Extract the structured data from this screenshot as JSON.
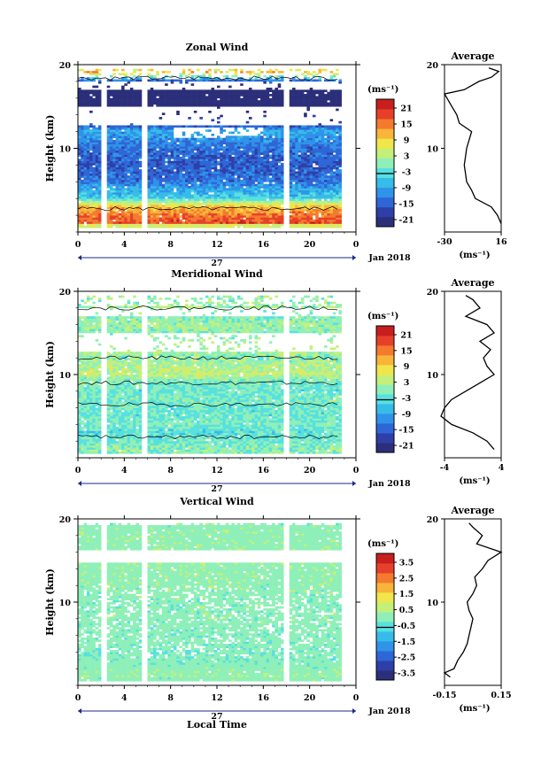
{
  "panels": [
    {
      "title": "Zonal Wind",
      "ylabel": "Height (km)",
      "xticks": [
        "0",
        "4",
        "8",
        "12",
        "16",
        "20",
        "0"
      ],
      "yticks": [
        "20",
        "10"
      ],
      "day_label": "27",
      "month_label": "Jan 2018",
      "cb_unit": "(ms⁻¹)",
      "cb_ticks": [
        "21",
        "15",
        "9",
        "3",
        "-3",
        "-9",
        "-15",
        "-21"
      ],
      "avg_title": "Average",
      "avg_xticks": [
        "-30",
        "16"
      ],
      "avg_unit": "(ms⁻¹)",
      "avg_yticks": [
        "20",
        "10"
      ]
    },
    {
      "title": "Meridional Wind",
      "ylabel": "Height (km)",
      "xticks": [
        "0",
        "4",
        "8",
        "12",
        "16",
        "20",
        "0"
      ],
      "yticks": [
        "20",
        "10"
      ],
      "day_label": "27",
      "month_label": "Jan 2018",
      "cb_unit": "(ms⁻¹)",
      "cb_ticks": [
        "21",
        "15",
        "9",
        "3",
        "-3",
        "-9",
        "-15",
        "-21"
      ],
      "avg_title": "Average",
      "avg_xticks": [
        "-4",
        "4"
      ],
      "avg_unit": "(ms⁻¹)",
      "avg_yticks": [
        "20",
        "10"
      ]
    },
    {
      "title": "Vertical Wind",
      "ylabel": "Height (km)",
      "xticks": [
        "0",
        "4",
        "8",
        "12",
        "16",
        "20",
        "0"
      ],
      "yticks": [
        "20",
        "10"
      ],
      "day_label": "27",
      "month_label": "Jan 2018",
      "cb_unit": "(ms⁻¹)",
      "cb_ticks": [
        "3.5",
        "2.5",
        "1.5",
        "0.5",
        "-0.5",
        "-1.5",
        "-2.5",
        "-3.5"
      ],
      "avg_title": "Average",
      "avg_xticks": [
        "-0.15",
        "0.15"
      ],
      "avg_unit": "(ms⁻¹)",
      "avg_yticks": [
        "20",
        "10"
      ]
    }
  ],
  "xlabel": "Local Time",
  "colors": {
    "colormap": [
      "#2b2f7a",
      "#2e3fa8",
      "#2f66d6",
      "#2f93ea",
      "#36bce8",
      "#57e0e0",
      "#8ef0b8",
      "#c4f07a",
      "#f0e64a",
      "#f9b43a",
      "#f47a2e",
      "#e7402a",
      "#c81e1e"
    ]
  },
  "chart_data": [
    {
      "type": "heatmap",
      "title": "Zonal Wind",
      "ylabel": "Height (km)",
      "xlabel": "Local Time",
      "xlim": [
        0,
        24
      ],
      "ylim": [
        0,
        20
      ],
      "clim": [
        -21,
        21
      ],
      "data_gaps_hours": [
        [
          2.0,
          2.5
        ],
        [
          5.3,
          5.9
        ],
        [
          17.6,
          18.1
        ]
      ],
      "height_profile_ms": [
        [
          1,
          16
        ],
        [
          2,
          13
        ],
        [
          3,
          8
        ],
        [
          4,
          -5
        ],
        [
          5,
          -8
        ],
        [
          6,
          -12
        ],
        [
          7,
          -13
        ],
        [
          8,
          -14
        ],
        [
          9,
          -13
        ],
        [
          10,
          -12
        ],
        [
          11,
          -10
        ],
        [
          12,
          -8
        ],
        [
          13,
          -18
        ],
        [
          14,
          -20
        ],
        [
          15,
          -24
        ],
        [
          16,
          -28
        ],
        [
          17,
          -30
        ],
        [
          18,
          -12
        ],
        [
          19,
          10
        ],
        [
          19.5,
          5
        ]
      ],
      "contour_levels": [
        3
      ],
      "profile": {
        "title": "Average",
        "xlim": [
          -30,
          16
        ],
        "points": [
          [
            16,
            1
          ],
          [
            13,
            2
          ],
          [
            8,
            3
          ],
          [
            -5,
            4
          ],
          [
            -8,
            5
          ],
          [
            -12,
            6
          ],
          [
            -13,
            7
          ],
          [
            -14,
            8
          ],
          [
            -13,
            9
          ],
          [
            -12,
            10
          ],
          [
            -10,
            11
          ],
          [
            -8,
            12
          ],
          [
            -18,
            13
          ],
          [
            -20,
            14
          ],
          [
            -24,
            15
          ],
          [
            -28,
            16
          ],
          [
            -30,
            16.5
          ],
          [
            -14,
            17
          ],
          [
            -2,
            18
          ],
          [
            8,
            18.5
          ],
          [
            14,
            19.2
          ],
          [
            6,
            19.6
          ]
        ]
      }
    },
    {
      "type": "heatmap",
      "title": "Meridional Wind",
      "ylabel": "Height (km)",
      "xlabel": "Local Time",
      "xlim": [
        0,
        24
      ],
      "ylim": [
        0,
        20
      ],
      "clim": [
        -21,
        21
      ],
      "data_gaps_hours": [
        [
          2.0,
          2.5
        ],
        [
          5.3,
          5.9
        ],
        [
          17.6,
          18.1
        ]
      ],
      "height_profile_ms": [
        [
          1,
          0
        ],
        [
          2,
          -2
        ],
        [
          3,
          -3
        ],
        [
          4,
          -1
        ],
        [
          5,
          -2
        ],
        [
          6,
          -2
        ],
        [
          7,
          -1
        ],
        [
          8,
          -2
        ],
        [
          9,
          -1
        ],
        [
          10,
          3
        ],
        [
          11,
          2
        ],
        [
          12,
          0
        ],
        [
          13,
          2
        ],
        [
          14,
          1
        ],
        [
          15,
          0
        ],
        [
          16,
          1
        ],
        [
          17,
          -1
        ],
        [
          18,
          1
        ],
        [
          19,
          0
        ]
      ],
      "contour_levels": [
        3,
        -3
      ],
      "profile": {
        "title": "Average",
        "xlim": [
          -4,
          4
        ],
        "points": [
          [
            3,
            1
          ],
          [
            2,
            2
          ],
          [
            0,
            3
          ],
          [
            -3,
            4
          ],
          [
            -4.5,
            5
          ],
          [
            -4,
            6
          ],
          [
            -3,
            7
          ],
          [
            -1,
            8
          ],
          [
            1,
            9
          ],
          [
            3,
            10
          ],
          [
            2,
            11
          ],
          [
            1.5,
            12
          ],
          [
            2.5,
            13
          ],
          [
            1,
            14
          ],
          [
            3,
            15
          ],
          [
            2,
            16
          ],
          [
            -1,
            17
          ],
          [
            1,
            18
          ],
          [
            0,
            19
          ],
          [
            -1,
            19.5
          ]
        ]
      }
    },
    {
      "type": "heatmap",
      "title": "Vertical Wind",
      "ylabel": "Height (km)",
      "xlabel": "Local Time",
      "xlim": [
        0,
        24
      ],
      "ylim": [
        0,
        20
      ],
      "clim": [
        -3.5,
        3.5
      ],
      "data_gaps_hours": [
        [
          2.0,
          2.5
        ],
        [
          5.3,
          5.9
        ],
        [
          17.6,
          18.1
        ]
      ],
      "height_profile_ms": [
        [
          1,
          0.1
        ],
        [
          2,
          0
        ],
        [
          3,
          -0.1
        ],
        [
          4,
          -0.1
        ],
        [
          5,
          -0.05
        ],
        [
          6,
          -0.05
        ],
        [
          8,
          0
        ],
        [
          10,
          -0.03
        ],
        [
          12,
          0.02
        ],
        [
          14,
          0.05
        ],
        [
          16,
          0.1
        ],
        [
          17,
          0.02
        ],
        [
          18,
          0.05
        ],
        [
          19,
          0
        ]
      ],
      "contour_levels": [],
      "profile": {
        "title": "Average",
        "xlim": [
          -0.15,
          0.15
        ],
        "points": [
          [
            -0.12,
            1
          ],
          [
            -0.15,
            1.5
          ],
          [
            -0.1,
            2
          ],
          [
            -0.08,
            3
          ],
          [
            -0.05,
            4
          ],
          [
            -0.03,
            5
          ],
          [
            -0.02,
            6
          ],
          [
            -0.01,
            7
          ],
          [
            0.0,
            8
          ],
          [
            -0.02,
            9
          ],
          [
            -0.03,
            10
          ],
          [
            0.0,
            11
          ],
          [
            0.02,
            12
          ],
          [
            0.01,
            13
          ],
          [
            0.05,
            14
          ],
          [
            0.08,
            15
          ],
          [
            0.15,
            16
          ],
          [
            0.02,
            17
          ],
          [
            0.05,
            18
          ],
          [
            0.0,
            19
          ],
          [
            -0.02,
            19.5
          ]
        ]
      }
    }
  ]
}
